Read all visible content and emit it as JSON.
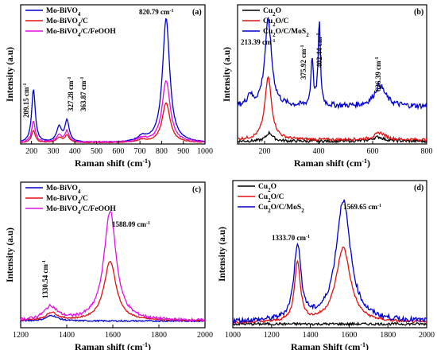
{
  "chart_data": [
    {
      "panel_label": "(a)",
      "type": "line",
      "xlabel": "Raman shift (cm",
      "ylabel": "Intensity (a.u)",
      "xlim": [
        150,
        1000
      ],
      "xticks": [
        200,
        300,
        400,
        500,
        600,
        700,
        800,
        900,
        1000
      ],
      "legend_position": "top-left",
      "series": [
        {
          "name": "Mo-BiVO",
          "name_sub": "4",
          "name_rest": "",
          "color": "#0000cc",
          "peaks": [
            [
              209.15,
              0.43,
              10
            ],
            [
              327.28,
              0.12,
              14
            ],
            [
              363.87,
              0.17,
              12
            ],
            [
              820.79,
              1.0,
              20
            ],
            [
              710,
              0.04,
              25
            ]
          ],
          "baseline": 0.01
        },
        {
          "name": "Mo-BiVO",
          "name_sub": "4",
          "name_rest": "/C",
          "color": "#e01010",
          "peaks": [
            [
              209.15,
              0.1,
              10
            ],
            [
              327.28,
              0.04,
              14
            ],
            [
              363.87,
              0.06,
              12
            ],
            [
              820.79,
              0.32,
              22
            ],
            [
              710,
              0.02,
              25
            ]
          ],
          "baseline": 0.01
        },
        {
          "name": "Mo-BiVO",
          "name_sub": "4",
          "name_rest": "/C/FeOOH",
          "color": "#e010e0",
          "peaks": [
            [
              209.15,
              0.17,
              10
            ],
            [
              327.28,
              0.06,
              14
            ],
            [
              363.87,
              0.09,
              12
            ],
            [
              820.79,
              0.5,
              22
            ],
            [
              710,
              0.03,
              25
            ]
          ],
          "baseline": 0.012
        }
      ],
      "annotations": [
        {
          "text": "209.15 cm",
          "x": 209.15
        },
        {
          "text": "327.28 cm",
          "x": 327.28
        },
        {
          "text": "363.87 cm",
          "x": 363.87
        },
        {
          "text": "820.79 cm",
          "x": 820.79
        }
      ]
    },
    {
      "panel_label": "(b)",
      "type": "line",
      "xlabel": "Raman shift (cm",
      "ylabel": "Intensity (a.u)",
      "xlim": [
        100,
        800
      ],
      "xticks": [
        200,
        400,
        600,
        800
      ],
      "legend_position": "top-left",
      "series": [
        {
          "name": "Cu",
          "name_sub": "2",
          "name_rest": "O",
          "color": "#000000",
          "peaks": [
            [
              218,
              0.06,
              15
            ],
            [
              620,
              0.03,
              25
            ]
          ],
          "baseline": 0.02
        },
        {
          "name": "Cu",
          "name_sub": "2",
          "name_rest": "O/C",
          "color": "#e01010",
          "peaks": [
            [
              213.39,
              0.45,
              15
            ],
            [
              626.39,
              0.05,
              25
            ]
          ],
          "baseline": 0.03
        },
        {
          "name": "Cu",
          "name_sub": "2",
          "name_rest": "O/C/MoS",
          "name_sub2": "2",
          "color": "#0000cc",
          "peaks": [
            [
              213.39,
              0.62,
              15
            ],
            [
              375.92,
              0.35,
              5
            ],
            [
              402.44,
              0.6,
              5
            ],
            [
              626.39,
              0.15,
              25
            ],
            [
              145,
              0.08,
              10
            ]
          ],
          "baseline": 0.27
        }
      ],
      "annotations": [
        {
          "text": "213.39 cm",
          "x": 213.39
        },
        {
          "text": "375.92 cm",
          "x": 375.92
        },
        {
          "text": "402.44 cm",
          "x": 402.44
        },
        {
          "text": "626.39 cm",
          "x": 626.39
        }
      ]
    },
    {
      "panel_label": "(c)",
      "type": "line",
      "xlabel": "Raman shift (cm",
      "ylabel": "Intensity (a.u)",
      "xlim": [
        1200,
        2000
      ],
      "xticks": [
        1200,
        1400,
        1600,
        1800,
        2000
      ],
      "legend_position": "top-left",
      "series": [
        {
          "name": "Mo-BiVO",
          "name_sub": "4",
          "name_rest": "",
          "color": "#0000cc",
          "peaks": [
            [
              1335,
              0.05,
              30
            ]
          ],
          "baseline": 0.01
        },
        {
          "name": "Mo-BiVO",
          "name_sub": "4",
          "name_rest": "/C",
          "color": "#e01010",
          "peaks": [
            [
              1335,
              0.07,
              30
            ],
            [
              1588.09,
              0.53,
              32
            ]
          ],
          "baseline": 0.012
        },
        {
          "name": "Mo-BiVO",
          "name_sub": "4",
          "name_rest": "/C/FeOOH",
          "color": "#e010e0",
          "peaks": [
            [
              1330.54,
              0.12,
              35
            ],
            [
              1588.09,
              0.98,
              32
            ]
          ],
          "baseline": 0.012
        }
      ],
      "annotations": [
        {
          "text": "1330.54 cm",
          "x": 1330.54
        },
        {
          "text": "1588.09 cm",
          "x": 1588.09
        }
      ]
    },
    {
      "panel_label": "(d)",
      "type": "line",
      "xlabel": "Raman Shift (cm",
      "ylabel": "Intensity (a.u)",
      "xlim": [
        1000,
        2000
      ],
      "xticks": [
        1000,
        1200,
        1400,
        1600,
        1800,
        2000
      ],
      "legend_position": "top-left",
      "series": [
        {
          "name": "Cu",
          "name_sub": "2",
          "name_rest": "O",
          "color": "#000000",
          "peaks": [],
          "baseline": 0.03
        },
        {
          "name": "Cu",
          "name_sub": "2",
          "name_rest": "O/C",
          "color": "#e01010",
          "peaks": [
            [
              1333.7,
              0.48,
              18
            ],
            [
              1569.65,
              0.6,
              45
            ]
          ],
          "baseline": 0.04
        },
        {
          "name": "Cu",
          "name_sub": "2",
          "name_rest": "O/C/MoS",
          "name_sub2": "2",
          "color": "#0000cc",
          "peaks": [
            [
              1333.7,
              0.6,
              22
            ],
            [
              1569.65,
              0.97,
              45
            ]
          ],
          "baseline": 0.05
        }
      ],
      "annotations": [
        {
          "text": "1333.70 cm",
          "x": 1333.7
        },
        {
          "text": "1569.65 cm",
          "x": 1569.65
        }
      ]
    }
  ]
}
